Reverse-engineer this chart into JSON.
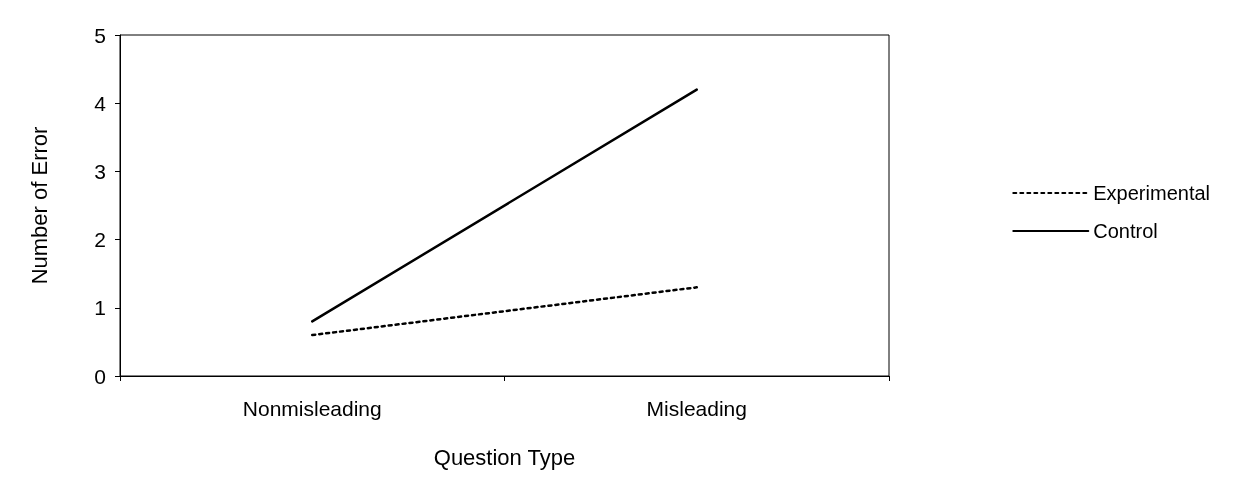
{
  "chart_data": {
    "type": "line",
    "xlabel": "Question Type",
    "ylabel": "Number of Error",
    "categories": [
      "Nonmisleading",
      "Misleading"
    ],
    "series": [
      {
        "name": "Experimental",
        "color": "#000000",
        "values": [
          0.6,
          1.3
        ],
        "line_style": "dotted"
      },
      {
        "name": "Control",
        "color": "#000000",
        "values": [
          0.8,
          4.2
        ],
        "line_style": "solid"
      }
    ],
    "ylim": [
      0,
      5
    ],
    "yticks": [
      0,
      1,
      2,
      3,
      4,
      5
    ],
    "grid": false,
    "legend": "right",
    "marker": "none"
  }
}
